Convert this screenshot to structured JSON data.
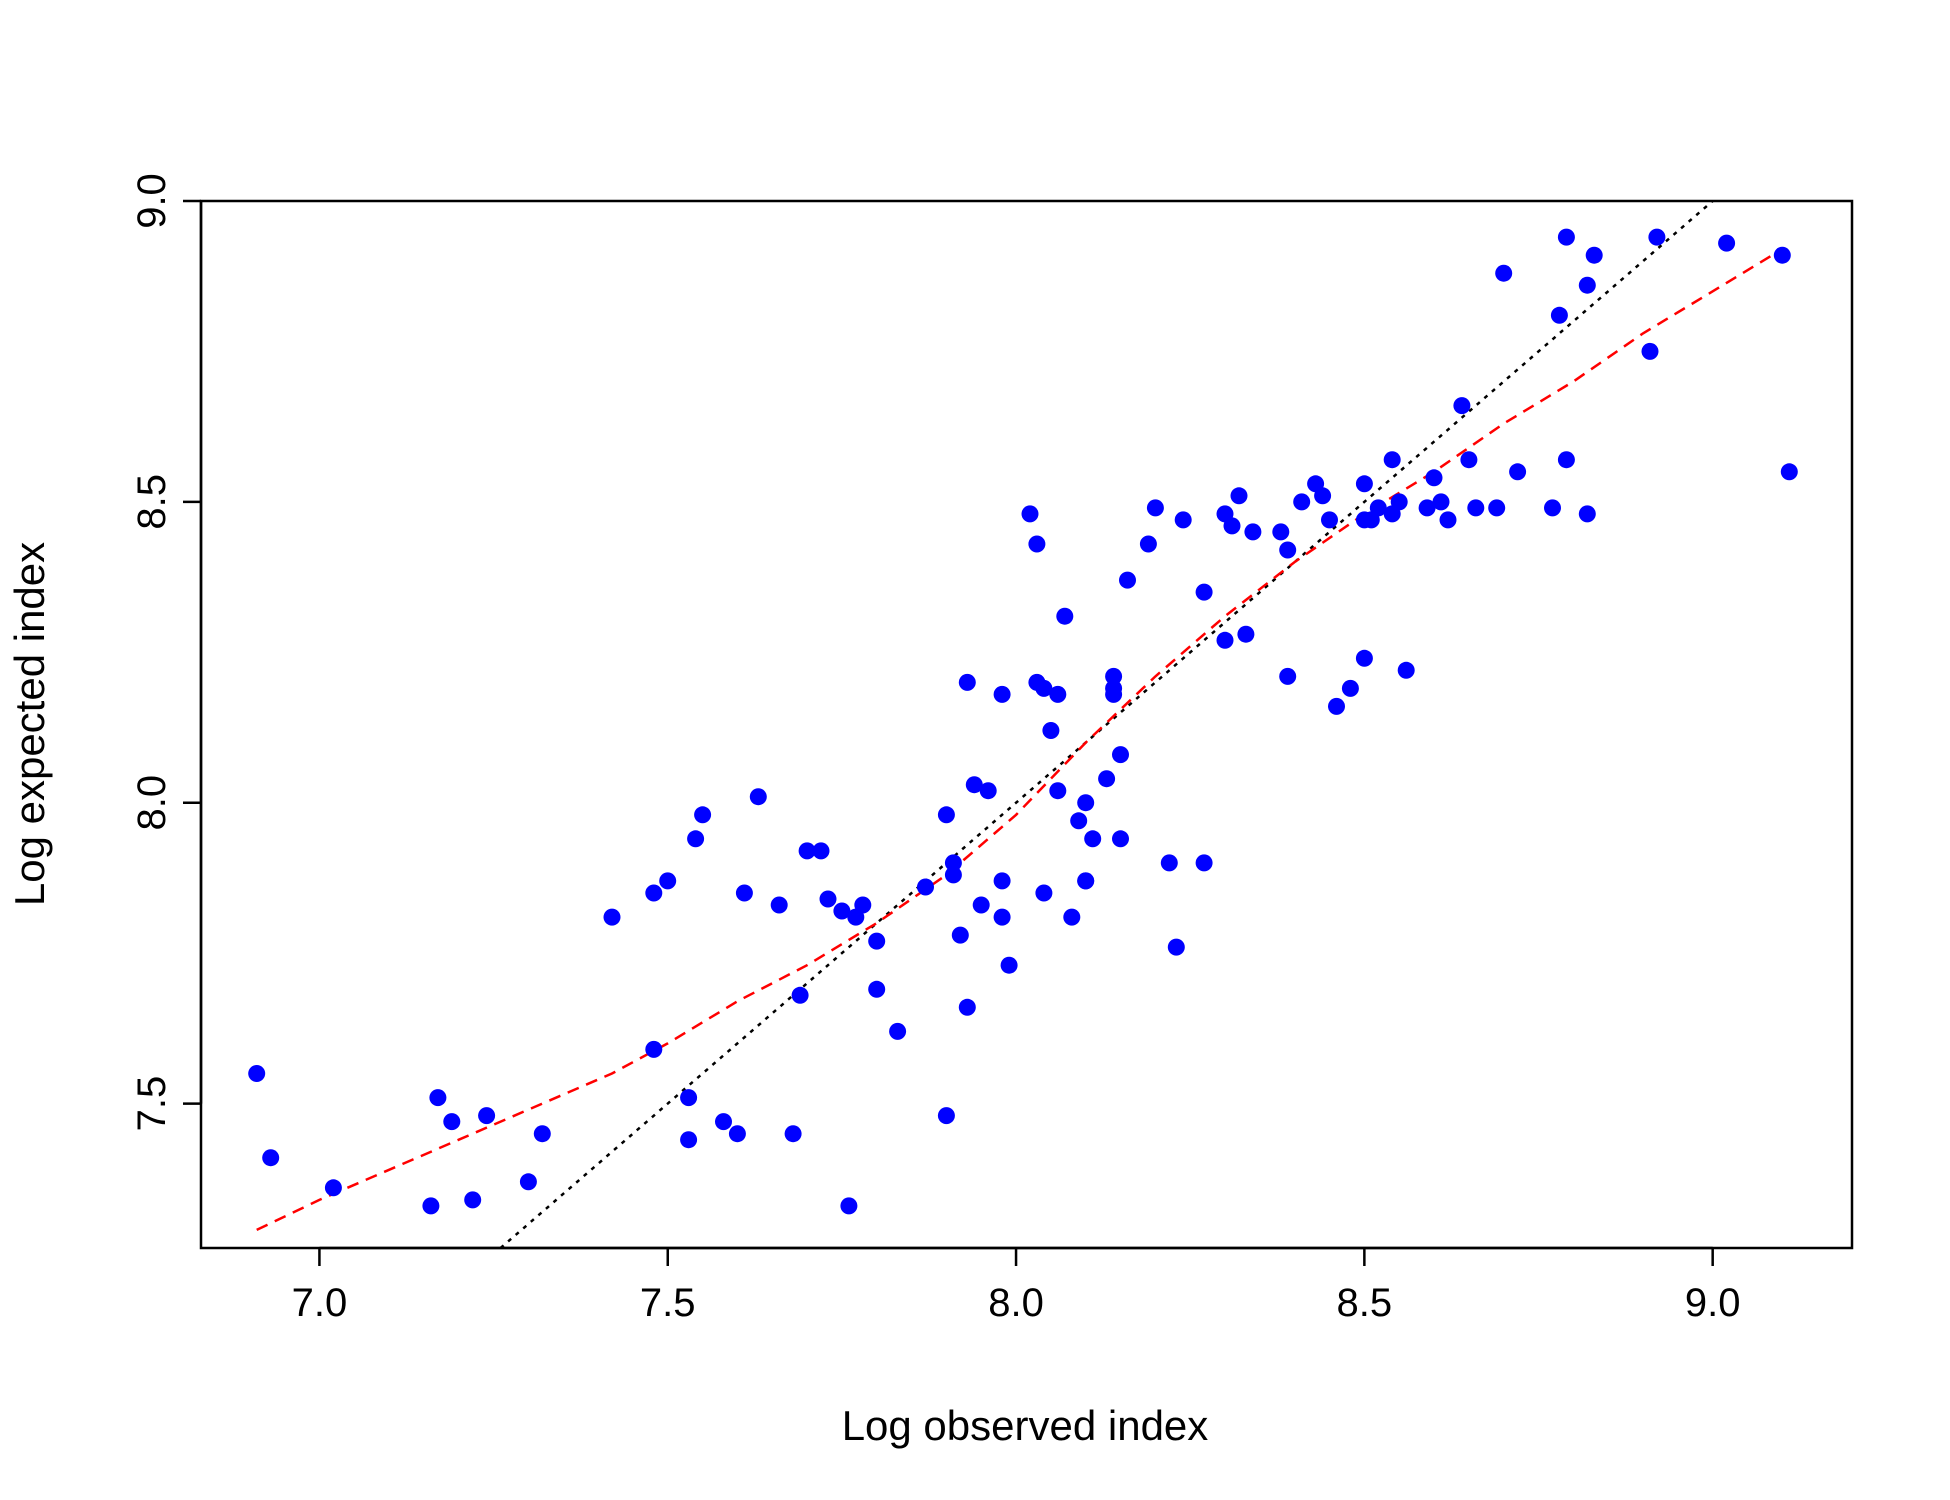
{
  "chart_data": {
    "type": "scatter",
    "title": "",
    "xlabel": "Log observed index",
    "ylabel": "Log expected index",
    "xlim": [
      6.83,
      9.2
    ],
    "ylim": [
      7.26,
      9.0
    ],
    "xticks": [
      7.0,
      7.5,
      8.0,
      8.5,
      9.0
    ],
    "xtick_labels": [
      "7.0",
      "7.5",
      "8.0",
      "8.5",
      "9.0"
    ],
    "yticks": [
      7.5,
      8.0,
      8.5,
      9.0
    ],
    "ytick_labels": [
      "7.5",
      "8.0",
      "8.5",
      "9.0"
    ],
    "grid": false,
    "legend": "none",
    "colors": {
      "points": "#0000ff",
      "smooth": "#ff0000",
      "identity": "#000000",
      "frame": "#000000"
    },
    "points": [
      [
        6.91,
        7.55
      ],
      [
        6.93,
        7.41
      ],
      [
        7.02,
        7.36
      ],
      [
        7.16,
        7.33
      ],
      [
        7.17,
        7.51
      ],
      [
        7.19,
        7.47
      ],
      [
        7.22,
        7.34
      ],
      [
        7.24,
        7.48
      ],
      [
        7.3,
        7.37
      ],
      [
        7.32,
        7.45
      ],
      [
        7.42,
        7.81
      ],
      [
        7.48,
        7.85
      ],
      [
        7.48,
        7.59
      ],
      [
        7.5,
        7.87
      ],
      [
        7.53,
        7.51
      ],
      [
        7.53,
        7.44
      ],
      [
        7.54,
        7.94
      ],
      [
        7.55,
        7.98
      ],
      [
        7.58,
        7.47
      ],
      [
        7.6,
        7.45
      ],
      [
        7.61,
        7.85
      ],
      [
        7.63,
        8.01
      ],
      [
        7.66,
        7.83
      ],
      [
        7.68,
        7.45
      ],
      [
        7.69,
        7.68
      ],
      [
        7.7,
        7.92
      ],
      [
        7.72,
        7.92
      ],
      [
        7.73,
        7.84
      ],
      [
        7.75,
        7.82
      ],
      [
        7.76,
        7.33
      ],
      [
        7.77,
        7.81
      ],
      [
        7.78,
        7.83
      ],
      [
        7.8,
        7.77
      ],
      [
        7.8,
        7.69
      ],
      [
        7.83,
        7.62
      ],
      [
        7.87,
        7.86
      ],
      [
        7.9,
        7.98
      ],
      [
        7.9,
        7.48
      ],
      [
        7.91,
        7.9
      ],
      [
        7.91,
        7.88
      ],
      [
        7.92,
        7.78
      ],
      [
        7.93,
        8.2
      ],
      [
        7.93,
        7.66
      ],
      [
        7.94,
        8.03
      ],
      [
        7.95,
        7.83
      ],
      [
        7.96,
        8.02
      ],
      [
        7.98,
        8.18
      ],
      [
        7.98,
        7.87
      ],
      [
        7.98,
        7.81
      ],
      [
        7.99,
        7.73
      ],
      [
        8.02,
        8.48
      ],
      [
        8.03,
        8.43
      ],
      [
        8.03,
        8.2
      ],
      [
        8.04,
        8.19
      ],
      [
        8.04,
        7.85
      ],
      [
        8.05,
        8.12
      ],
      [
        8.06,
        8.18
      ],
      [
        8.06,
        8.02
      ],
      [
        8.07,
        8.31
      ],
      [
        8.08,
        7.81
      ],
      [
        8.09,
        7.97
      ],
      [
        8.1,
        7.87
      ],
      [
        8.1,
        7.87
      ],
      [
        8.1,
        8.0
      ],
      [
        8.11,
        7.94
      ],
      [
        8.13,
        8.04
      ],
      [
        8.14,
        8.19
      ],
      [
        8.14,
        8.21
      ],
      [
        8.14,
        8.18
      ],
      [
        8.15,
        8.08
      ],
      [
        8.15,
        7.94
      ],
      [
        8.16,
        8.37
      ],
      [
        8.19,
        8.43
      ],
      [
        8.2,
        8.49
      ],
      [
        8.22,
        7.9
      ],
      [
        8.23,
        7.76
      ],
      [
        8.24,
        8.47
      ],
      [
        8.27,
        7.9
      ],
      [
        8.27,
        8.35
      ],
      [
        8.3,
        8.48
      ],
      [
        8.3,
        8.27
      ],
      [
        8.31,
        8.46
      ],
      [
        8.32,
        8.51
      ],
      [
        8.33,
        8.28
      ],
      [
        8.34,
        8.45
      ],
      [
        8.38,
        8.45
      ],
      [
        8.39,
        8.42
      ],
      [
        8.39,
        8.21
      ],
      [
        8.41,
        8.5
      ],
      [
        8.43,
        8.53
      ],
      [
        8.44,
        8.51
      ],
      [
        8.45,
        8.47
      ],
      [
        8.46,
        8.16
      ],
      [
        8.48,
        8.19
      ],
      [
        8.5,
        8.53
      ],
      [
        8.5,
        8.47
      ],
      [
        8.5,
        8.24
      ],
      [
        8.51,
        8.47
      ],
      [
        8.52,
        8.49
      ],
      [
        8.54,
        8.57
      ],
      [
        8.54,
        8.48
      ],
      [
        8.55,
        8.5
      ],
      [
        8.56,
        8.22
      ],
      [
        8.59,
        8.49
      ],
      [
        8.6,
        8.54
      ],
      [
        8.61,
        8.5
      ],
      [
        8.62,
        8.47
      ],
      [
        8.64,
        8.66
      ],
      [
        8.65,
        8.57
      ],
      [
        8.66,
        8.49
      ],
      [
        8.69,
        8.49
      ],
      [
        8.7,
        8.88
      ],
      [
        8.72,
        8.55
      ],
      [
        8.77,
        8.49
      ],
      [
        8.78,
        8.81
      ],
      [
        8.79,
        8.94
      ],
      [
        8.79,
        8.57
      ],
      [
        8.82,
        8.86
      ],
      [
        8.83,
        8.91
      ],
      [
        8.82,
        8.48
      ],
      [
        8.91,
        8.75
      ],
      [
        8.92,
        8.94
      ],
      [
        9.02,
        8.93
      ],
      [
        9.1,
        8.91
      ],
      [
        9.11,
        8.55
      ]
    ],
    "smooth_line": [
      [
        6.91,
        7.29
      ],
      [
        7.0,
        7.34
      ],
      [
        7.1,
        7.39
      ],
      [
        7.2,
        7.44
      ],
      [
        7.3,
        7.49
      ],
      [
        7.42,
        7.55
      ],
      [
        7.5,
        7.6
      ],
      [
        7.6,
        7.67
      ],
      [
        7.7,
        7.73
      ],
      [
        7.8,
        7.8
      ],
      [
        7.9,
        7.88
      ],
      [
        8.0,
        7.98
      ],
      [
        8.1,
        8.1
      ],
      [
        8.2,
        8.21
      ],
      [
        8.3,
        8.31
      ],
      [
        8.4,
        8.4
      ],
      [
        8.5,
        8.48
      ],
      [
        8.6,
        8.55
      ],
      [
        8.7,
        8.63
      ],
      [
        8.8,
        8.7
      ],
      [
        8.9,
        8.78
      ],
      [
        9.0,
        8.85
      ],
      [
        9.1,
        8.92
      ]
    ],
    "identity_line": [
      [
        7.26,
        7.26
      ],
      [
        9.0,
        9.0
      ]
    ]
  }
}
